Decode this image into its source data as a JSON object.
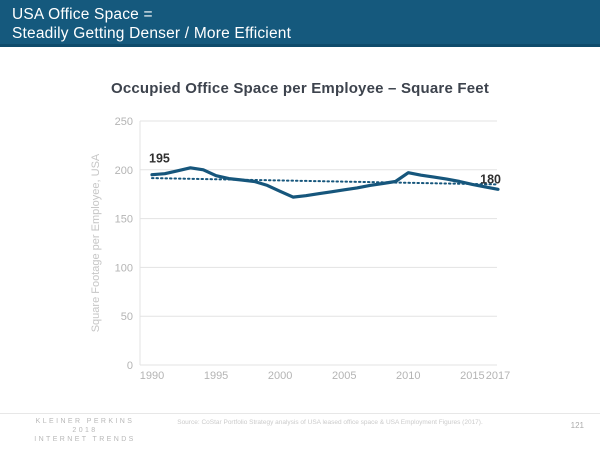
{
  "header": {
    "title_line1": "USA Office Space =",
    "title_line2": "Steadily Getting Denser / More Efficient"
  },
  "chart_data": {
    "type": "line",
    "title": "Occupied Office Space per Employee – Square Feet",
    "ylabel": "Square Footage per Employee, USA",
    "xlabel": "",
    "ylim": [
      0,
      250
    ],
    "yticks": [
      0,
      50,
      100,
      150,
      200,
      250
    ],
    "xticks": [
      1990,
      1995,
      2000,
      2005,
      2010,
      2015,
      2017
    ],
    "xlim": [
      1990,
      2017
    ],
    "grid": true,
    "legend": "none",
    "x": [
      1990,
      1991,
      1992,
      1993,
      1994,
      1995,
      1996,
      1997,
      1998,
      1999,
      2000,
      2001,
      2002,
      2003,
      2004,
      2005,
      2006,
      2007,
      2008,
      2009,
      2010,
      2011,
      2012,
      2013,
      2014,
      2015,
      2016,
      2017
    ],
    "series": [
      {
        "name": "Occupied office space per employee (sq ft)",
        "style": "solid",
        "color": "#16567C",
        "values": [
          195,
          196,
          199,
          202,
          200,
          194,
          191,
          189.5,
          188,
          184,
          178,
          172,
          173.5,
          175.5,
          177.5,
          179.5,
          181.5,
          184,
          186,
          188,
          197,
          194.5,
          192.5,
          190.5,
          188,
          185,
          182.5,
          180
        ]
      },
      {
        "name": "trend",
        "style": "dotted",
        "color": "#16567C",
        "x": [
          1990,
          2017
        ],
        "values": [
          191.5,
          185
        ]
      }
    ],
    "annotations": [
      {
        "x": 1990,
        "y": 195,
        "label": "195",
        "placement": "above-start"
      },
      {
        "x": 2017,
        "y": 180,
        "label": "180",
        "placement": "above-end"
      }
    ]
  },
  "footer": {
    "brand_line1": "KLEINER PERKINS",
    "brand_line2": "2018",
    "brand_line3": "INTERNET TRENDS",
    "source": "Source: CoStar Portfolio Strategy analysis of USA leased office space & USA Employment Figures (2017).",
    "page_number": "121"
  },
  "colors": {
    "header_bg": "#15597D",
    "accent_line": "#16567C",
    "grid": "#E3E3E3",
    "tick_text": "#B4B4B4",
    "axis_label": "#C6C6C6",
    "title_text": "#3D434D",
    "data_label": "#303030"
  }
}
